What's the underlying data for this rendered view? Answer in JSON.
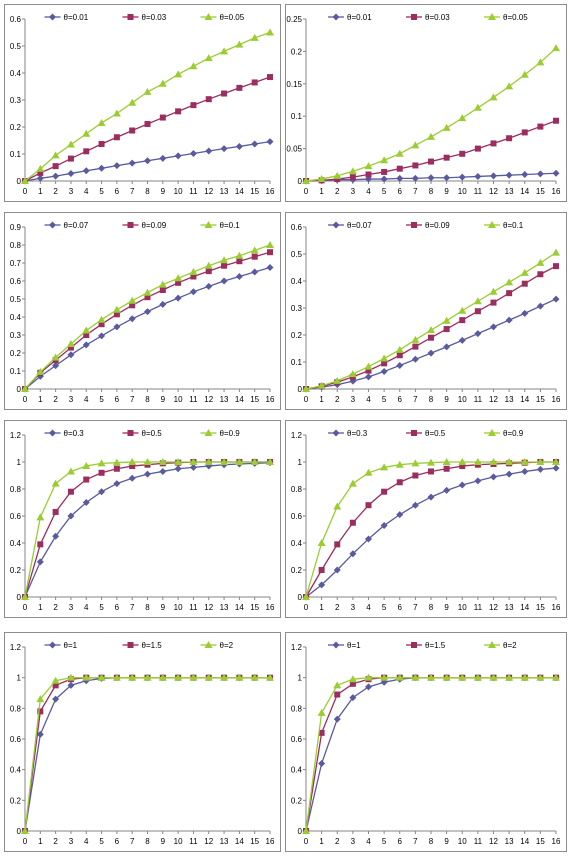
{
  "colors": {
    "s1": "#5a5a9e",
    "s2": "#9b2d5f",
    "s3": "#9acd32"
  },
  "chart_data": [
    {
      "type": "line",
      "x": [
        0,
        1,
        2,
        3,
        4,
        5,
        6,
        7,
        8,
        9,
        10,
        11,
        12,
        13,
        14,
        15,
        16
      ],
      "ylim": [
        0,
        0.6
      ],
      "yticks": [
        "0",
        "0.1",
        "0.2",
        "0.3",
        "0.4",
        "0.5",
        "0.6"
      ],
      "series": [
        {
          "name": "θ=0.01",
          "values": [
            0,
            0.01,
            0.018,
            0.028,
            0.038,
            0.047,
            0.057,
            0.066,
            0.075,
            0.084,
            0.093,
            0.102,
            0.111,
            0.12,
            0.128,
            0.137,
            0.146
          ]
        },
        {
          "name": "θ=0.03",
          "values": [
            0,
            0.03,
            0.055,
            0.083,
            0.11,
            0.137,
            0.162,
            0.187,
            0.211,
            0.235,
            0.258,
            0.281,
            0.303,
            0.324,
            0.345,
            0.365,
            0.385
          ]
        },
        {
          "name": "θ=0.05",
          "values": [
            0,
            0.045,
            0.095,
            0.135,
            0.175,
            0.215,
            0.25,
            0.29,
            0.33,
            0.36,
            0.395,
            0.425,
            0.455,
            0.48,
            0.505,
            0.53,
            0.55
          ]
        }
      ]
    },
    {
      "type": "line",
      "x": [
        0,
        1,
        2,
        3,
        4,
        5,
        6,
        7,
        8,
        9,
        10,
        11,
        12,
        13,
        14,
        15,
        16
      ],
      "ylim": [
        0,
        0.25
      ],
      "yticks": [
        "0",
        "0.05",
        "0.1",
        "0.15",
        "0.2",
        "0.25"
      ],
      "series": [
        {
          "name": "θ=0.01",
          "values": [
            0,
            0.001,
            0.002,
            0.002,
            0.003,
            0.003,
            0.004,
            0.004,
            0.005,
            0.005,
            0.006,
            0.007,
            0.008,
            0.009,
            0.01,
            0.011,
            0.012
          ]
        },
        {
          "name": "θ=0.03",
          "values": [
            0,
            0.001,
            0.003,
            0.006,
            0.01,
            0.014,
            0.019,
            0.024,
            0.03,
            0.036,
            0.042,
            0.05,
            0.058,
            0.066,
            0.075,
            0.084,
            0.093
          ]
        },
        {
          "name": "θ=0.05",
          "values": [
            0,
            0.003,
            0.008,
            0.015,
            0.023,
            0.032,
            0.042,
            0.055,
            0.068,
            0.082,
            0.097,
            0.113,
            0.129,
            0.146,
            0.164,
            0.183,
            0.205
          ]
        }
      ]
    },
    {
      "type": "line",
      "x": [
        0,
        1,
        2,
        3,
        4,
        5,
        6,
        7,
        8,
        9,
        10,
        11,
        12,
        13,
        14,
        15,
        16
      ],
      "ylim": [
        0,
        0.9
      ],
      "yticks": [
        "0",
        "0.1",
        "0.2",
        "0.3",
        "0.4",
        "0.5",
        "0.6",
        "0.7",
        "0.8",
        "0.9"
      ],
      "series": [
        {
          "name": "θ=0.07",
          "values": [
            0,
            0.07,
            0.13,
            0.19,
            0.245,
            0.295,
            0.345,
            0.39,
            0.43,
            0.47,
            0.505,
            0.54,
            0.57,
            0.6,
            0.625,
            0.65,
            0.675
          ]
        },
        {
          "name": "θ=0.09",
          "values": [
            0,
            0.09,
            0.16,
            0.23,
            0.3,
            0.36,
            0.415,
            0.465,
            0.51,
            0.55,
            0.59,
            0.625,
            0.655,
            0.685,
            0.71,
            0.735,
            0.76
          ]
        },
        {
          "name": "θ=0.1",
          "values": [
            0,
            0.095,
            0.175,
            0.25,
            0.325,
            0.385,
            0.44,
            0.49,
            0.535,
            0.58,
            0.615,
            0.65,
            0.685,
            0.715,
            0.74,
            0.77,
            0.8
          ]
        }
      ]
    },
    {
      "type": "line",
      "x": [
        0,
        1,
        2,
        3,
        4,
        5,
        6,
        7,
        8,
        9,
        10,
        11,
        12,
        13,
        14,
        15,
        16
      ],
      "ylim": [
        0,
        0.6
      ],
      "yticks": [
        "0",
        "0.1",
        "0.2",
        "0.3",
        "0.4",
        "0.5",
        "0.6"
      ],
      "series": [
        {
          "name": "θ=0.07",
          "values": [
            0,
            0.007,
            0.016,
            0.029,
            0.045,
            0.065,
            0.087,
            0.11,
            0.133,
            0.156,
            0.18,
            0.205,
            0.23,
            0.255,
            0.28,
            0.307,
            0.333
          ]
        },
        {
          "name": "θ=0.09",
          "values": [
            0,
            0.01,
            0.025,
            0.045,
            0.068,
            0.095,
            0.125,
            0.157,
            0.19,
            0.222,
            0.255,
            0.288,
            0.32,
            0.355,
            0.39,
            0.425,
            0.455
          ]
        },
        {
          "name": "θ=0.1",
          "values": [
            0,
            0.012,
            0.03,
            0.055,
            0.083,
            0.113,
            0.145,
            0.182,
            0.218,
            0.253,
            0.29,
            0.325,
            0.36,
            0.395,
            0.43,
            0.467,
            0.505
          ]
        }
      ]
    },
    {
      "type": "line",
      "x": [
        0,
        1,
        2,
        3,
        4,
        5,
        6,
        7,
        8,
        9,
        10,
        11,
        12,
        13,
        14,
        15,
        16
      ],
      "ylim": [
        0,
        1.2
      ],
      "yticks": [
        "0",
        "0.2",
        "0.4",
        "0.6",
        "0.8",
        "1",
        "1.2"
      ],
      "series": [
        {
          "name": "θ=0.3",
          "values": [
            0,
            0.26,
            0.45,
            0.6,
            0.7,
            0.78,
            0.84,
            0.88,
            0.91,
            0.93,
            0.95,
            0.96,
            0.97,
            0.98,
            0.985,
            0.99,
            0.995
          ]
        },
        {
          "name": "θ=0.5",
          "values": [
            0,
            0.39,
            0.63,
            0.78,
            0.87,
            0.92,
            0.95,
            0.97,
            0.98,
            0.99,
            0.995,
            1,
            1,
            1,
            1,
            1,
            1
          ]
        },
        {
          "name": "θ=0.9",
          "values": [
            0,
            0.59,
            0.84,
            0.93,
            0.97,
            0.99,
            0.995,
            1,
            1,
            1,
            1,
            1,
            1,
            1,
            1,
            1,
            1
          ]
        }
      ]
    },
    {
      "type": "line",
      "x": [
        0,
        1,
        2,
        3,
        4,
        5,
        6,
        7,
        8,
        9,
        10,
        11,
        12,
        13,
        14,
        15,
        16
      ],
      "ylim": [
        0,
        1.2
      ],
      "yticks": [
        "0",
        "0.2",
        "0.4",
        "0.6",
        "0.8",
        "1",
        "1.2"
      ],
      "series": [
        {
          "name": "θ=0.3",
          "values": [
            0,
            0.09,
            0.2,
            0.32,
            0.43,
            0.53,
            0.61,
            0.68,
            0.74,
            0.79,
            0.83,
            0.86,
            0.89,
            0.91,
            0.93,
            0.945,
            0.955
          ]
        },
        {
          "name": "θ=0.5",
          "values": [
            0,
            0.2,
            0.39,
            0.55,
            0.68,
            0.78,
            0.85,
            0.9,
            0.93,
            0.95,
            0.97,
            0.98,
            0.985,
            0.99,
            0.995,
            1,
            1
          ]
        },
        {
          "name": "θ=0.9",
          "values": [
            0,
            0.4,
            0.67,
            0.84,
            0.92,
            0.96,
            0.98,
            0.99,
            0.995,
            1,
            1,
            1,
            1,
            1,
            1,
            1,
            1
          ]
        }
      ]
    },
    {
      "type": "line",
      "x": [
        0,
        1,
        2,
        3,
        4,
        5,
        6,
        7,
        8,
        9,
        10,
        11,
        12,
        13,
        14,
        15,
        16
      ],
      "ylim": [
        0,
        1.2
      ],
      "yticks": [
        "0",
        "0.2",
        "0.4",
        "0.6",
        "0.8",
        "1",
        "1.2"
      ],
      "series": [
        {
          "name": "θ=1",
          "values": [
            0,
            0.63,
            0.86,
            0.95,
            0.98,
            0.995,
            1,
            1,
            1,
            1,
            1,
            1,
            1,
            1,
            1,
            1,
            1
          ]
        },
        {
          "name": "θ=1.5",
          "values": [
            0,
            0.78,
            0.95,
            0.99,
            1,
            1,
            1,
            1,
            1,
            1,
            1,
            1,
            1,
            1,
            1,
            1,
            1
          ]
        },
        {
          "name": "θ=2",
          "values": [
            0,
            0.86,
            0.98,
            1,
            1,
            1,
            1,
            1,
            1,
            1,
            1,
            1,
            1,
            1,
            1,
            1,
            1
          ]
        }
      ]
    },
    {
      "type": "line",
      "x": [
        0,
        1,
        2,
        3,
        4,
        5,
        6,
        7,
        8,
        9,
        10,
        11,
        12,
        13,
        14,
        15,
        16
      ],
      "ylim": [
        0,
        1.2
      ],
      "yticks": [
        "0",
        "0.2",
        "0.4",
        "0.6",
        "0.8",
        "1",
        "1.2"
      ],
      "series": [
        {
          "name": "θ=1",
          "values": [
            0,
            0.44,
            0.73,
            0.87,
            0.94,
            0.97,
            0.99,
            1,
            1,
            1,
            1,
            1,
            1,
            1,
            1,
            1,
            1
          ]
        },
        {
          "name": "θ=1.5",
          "values": [
            0,
            0.64,
            0.89,
            0.96,
            0.99,
            1,
            1,
            1,
            1,
            1,
            1,
            1,
            1,
            1,
            1,
            1,
            1
          ]
        },
        {
          "name": "θ=2",
          "values": [
            0,
            0.77,
            0.95,
            0.99,
            1,
            1,
            1,
            1,
            1,
            1,
            1,
            1,
            1,
            1,
            1,
            1,
            1
          ]
        }
      ]
    }
  ]
}
